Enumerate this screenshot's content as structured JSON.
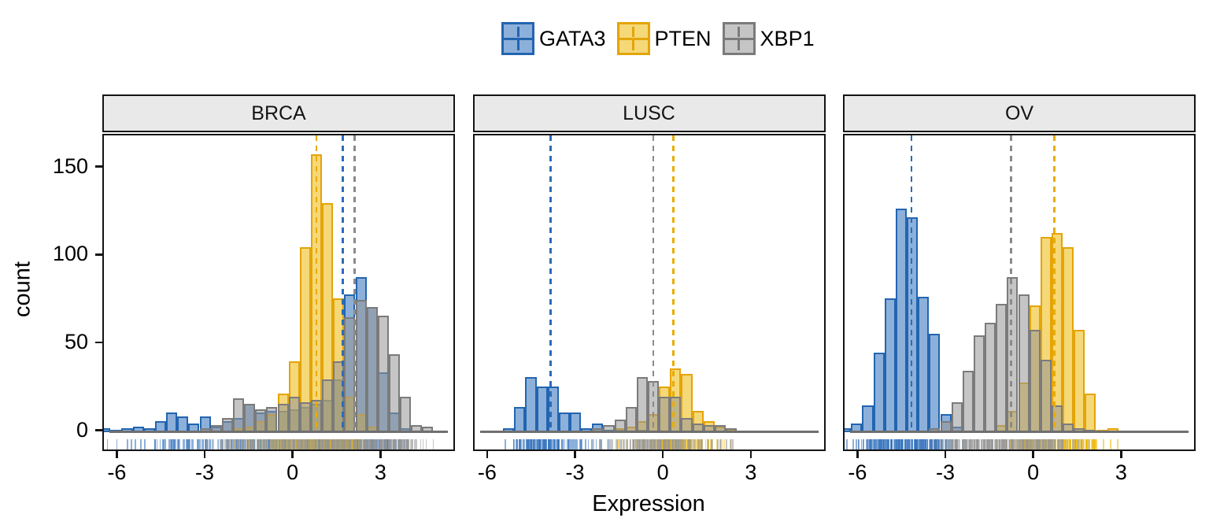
{
  "legend": {
    "items": [
      {
        "label": "GATA3",
        "series": "GATA3"
      },
      {
        "label": "PTEN",
        "series": "PTEN"
      },
      {
        "label": "XBP1",
        "series": "XBP1"
      }
    ]
  },
  "colors": {
    "GATA3": {
      "stroke": "#2265b0",
      "fill": "rgba(47,112,187,0.55)",
      "vline": "#2b6cb8"
    },
    "PTEN": {
      "stroke": "#e4a409",
      "fill": "rgba(237,184,10,0.55)",
      "vline": "#e8ac00"
    },
    "XBP1": {
      "stroke": "#7b7b7b",
      "fill": "rgba(150,150,150,0.55)",
      "vline": "#8a8a8a"
    },
    "baseline": "#6f6f6f",
    "strip_fill": "#e9e9e9",
    "panel_border": "#141414"
  },
  "axes": {
    "x_title": "Expression",
    "y_title": "count",
    "x_ticks": [
      -6,
      -3,
      0,
      3
    ],
    "y_ticks": [
      0,
      50,
      100,
      150
    ],
    "x_range": [
      -6.5,
      5.5
    ],
    "y_range": [
      0,
      168
    ]
  },
  "chart_data": {
    "type": "bar",
    "subtype": "faceted-overlaid-histograms-with-mean-vlines-and-rug",
    "binwidth": 0.38,
    "xlabel": "Expression",
    "ylabel": "count",
    "facets": [
      {
        "title": "BRCA",
        "series": [
          {
            "name": "GATA3",
            "mean": 1.66,
            "bins": [
              [
                -6.46,
                2
              ],
              [
                -6.08,
                1
              ],
              [
                -5.7,
                2
              ],
              [
                -5.32,
                3
              ],
              [
                -4.94,
                2
              ],
              [
                -4.56,
                6
              ],
              [
                -4.18,
                11
              ],
              [
                -3.8,
                9
              ],
              [
                -3.42,
                5
              ],
              [
                -3.04,
                9
              ],
              [
                -2.66,
                3
              ],
              [
                -2.28,
                6
              ],
              [
                -1.9,
                8
              ],
              [
                -1.52,
                16
              ],
              [
                -1.14,
                11
              ],
              [
                -0.76,
                12
              ],
              [
                -0.38,
                12
              ],
              [
                0,
                13
              ],
              [
                0.38,
                14
              ],
              [
                0.76,
                16
              ],
              [
                1.14,
                18
              ],
              [
                1.52,
                30
              ],
              [
                1.9,
                78
              ],
              [
                2.28,
                88
              ],
              [
                2.66,
                71
              ],
              [
                3.04,
                34
              ],
              [
                3.42,
                11
              ],
              [
                3.8,
                2
              ]
            ]
          },
          {
            "name": "PTEN",
            "mean": 0.76,
            "bins": [
              [
                -1.9,
                2
              ],
              [
                -1.52,
                3
              ],
              [
                -1.14,
                6
              ],
              [
                -0.76,
                10
              ],
              [
                -0.38,
                22
              ],
              [
                0,
                40
              ],
              [
                0.38,
                105
              ],
              [
                0.76,
                158
              ],
              [
                1.14,
                130
              ],
              [
                1.52,
                76
              ],
              [
                1.9,
                20
              ],
              [
                2.28,
                10
              ],
              [
                2.66,
                3
              ]
            ]
          },
          {
            "name": "XBP1",
            "mean": 2.06,
            "bins": [
              [
                -3.04,
                2
              ],
              [
                -2.66,
                4
              ],
              [
                -2.28,
                8
              ],
              [
                -1.9,
                19
              ],
              [
                -1.52,
                16
              ],
              [
                -1.14,
                13
              ],
              [
                -0.76,
                14
              ],
              [
                -0.38,
                16
              ],
              [
                0,
                20
              ],
              [
                0.38,
                17
              ],
              [
                0.76,
                18
              ],
              [
                1.14,
                30
              ],
              [
                1.52,
                40
              ],
              [
                1.9,
                65
              ],
              [
                2.28,
                75
              ],
              [
                2.66,
                71
              ],
              [
                3.04,
                66
              ],
              [
                3.42,
                44
              ],
              [
                3.8,
                20
              ],
              [
                4.18,
                4
              ],
              [
                4.56,
                3
              ]
            ]
          }
        ]
      },
      {
        "title": "LUSC",
        "series": [
          {
            "name": "GATA3",
            "mean": -3.89,
            "bins": [
              [
                -5.32,
                2
              ],
              [
                -4.94,
                14
              ],
              [
                -4.56,
                31
              ],
              [
                -4.18,
                26
              ],
              [
                -3.8,
                26
              ],
              [
                -3.42,
                11
              ],
              [
                -3.04,
                11
              ],
              [
                -2.66,
                2
              ],
              [
                -2.28,
                5
              ],
              [
                -1.9,
                1
              ],
              [
                -1.52,
                1
              ],
              [
                -0.76,
                1
              ]
            ]
          },
          {
            "name": "PTEN",
            "mean": 0.3,
            "bins": [
              [
                -1.52,
                2
              ],
              [
                -1.14,
                3
              ],
              [
                -0.76,
                6
              ],
              [
                -0.38,
                10
              ],
              [
                0,
                26
              ],
              [
                0.38,
                36
              ],
              [
                0.76,
                33
              ],
              [
                1.14,
                12
              ],
              [
                1.52,
                6
              ],
              [
                1.9,
                3
              ],
              [
                2.28,
                1
              ]
            ]
          },
          {
            "name": "XBP1",
            "mean": -0.38,
            "bins": [
              [
                -2.28,
                2
              ],
              [
                -1.9,
                4
              ],
              [
                -1.52,
                7
              ],
              [
                -1.14,
                14
              ],
              [
                -0.76,
                31
              ],
              [
                -0.38,
                29
              ],
              [
                0,
                20
              ],
              [
                0.38,
                20
              ],
              [
                0.76,
                8
              ],
              [
                1.14,
                5
              ],
              [
                1.52,
                4
              ],
              [
                1.9,
                4
              ],
              [
                2.28,
                2
              ]
            ]
          }
        ]
      },
      {
        "title": "OV",
        "series": [
          {
            "name": "GATA3",
            "mean": -4.21,
            "bins": [
              [
                -6.46,
                2
              ],
              [
                -6.08,
                5
              ],
              [
                -5.7,
                15
              ],
              [
                -5.32,
                45
              ],
              [
                -4.94,
                76
              ],
              [
                -4.56,
                127
              ],
              [
                -4.18,
                122
              ],
              [
                -3.8,
                77
              ],
              [
                -3.42,
                56
              ],
              [
                -3.04,
                10
              ],
              [
                -2.66,
                3
              ]
            ]
          },
          {
            "name": "PTEN",
            "mean": 0.66,
            "bins": [
              [
                -1.14,
                4
              ],
              [
                -0.76,
                12
              ],
              [
                -0.38,
                28
              ],
              [
                0,
                72
              ],
              [
                0.38,
                111
              ],
              [
                0.76,
                113
              ],
              [
                1.14,
                105
              ],
              [
                1.52,
                58
              ],
              [
                1.9,
                22
              ],
              [
                2.28,
                1
              ],
              [
                2.66,
                2
              ]
            ]
          },
          {
            "name": "XBP1",
            "mean": -0.81,
            "bins": [
              [
                -3.42,
                2
              ],
              [
                -3.04,
                6
              ],
              [
                -2.66,
                17
              ],
              [
                -2.28,
                35
              ],
              [
                -1.9,
                55
              ],
              [
                -1.52,
                62
              ],
              [
                -1.14,
                73
              ],
              [
                -0.76,
                88
              ],
              [
                -0.38,
                78
              ],
              [
                0,
                58
              ],
              [
                0.38,
                41
              ],
              [
                0.76,
                15
              ],
              [
                1.14,
                5
              ],
              [
                1.52,
                2
              ],
              [
                1.9,
                1
              ]
            ]
          }
        ]
      }
    ]
  }
}
